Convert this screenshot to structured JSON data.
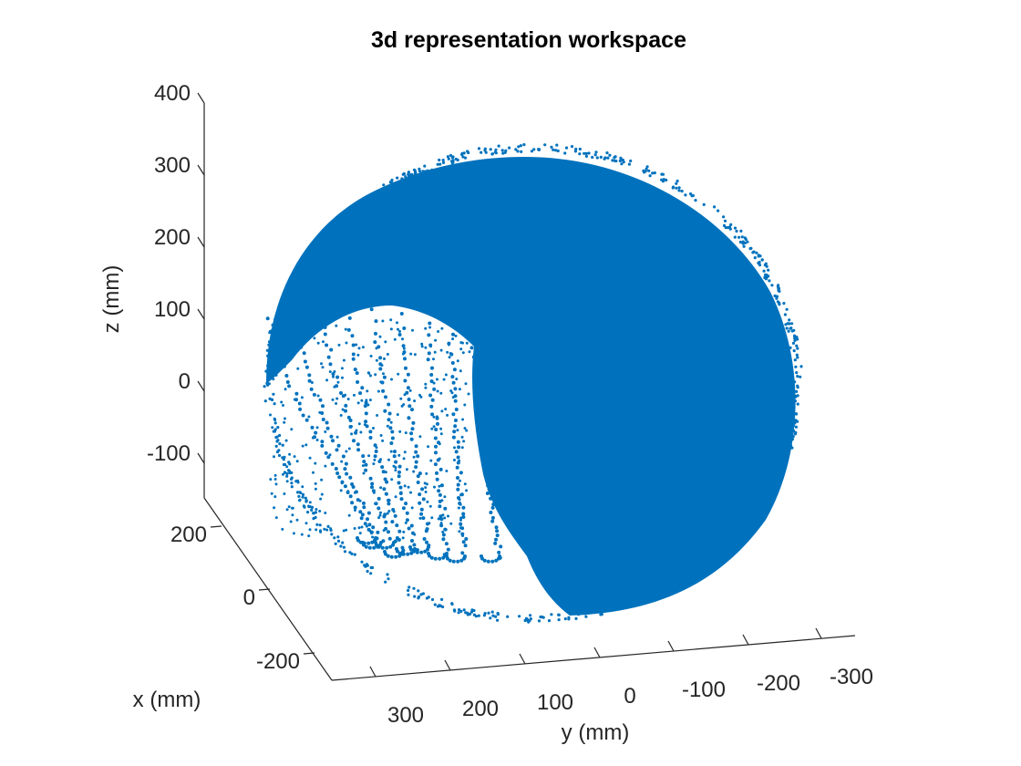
{
  "chart_data": {
    "type": "scatter",
    "title": "3d representation workspace",
    "xlabel": "x (mm)",
    "ylabel": "y (mm)",
    "zlabel": "z (mm)",
    "x_ticks": [
      "-200",
      "0",
      "200"
    ],
    "y_ticks": [
      "300",
      "200",
      "100",
      "0",
      "-100",
      "-200",
      "-300"
    ],
    "z_ticks": [
      "400",
      "300",
      "200",
      "100",
      "0",
      "-100"
    ],
    "xlim": [
      -300,
      300
    ],
    "ylim": [
      -350,
      350
    ],
    "zlim": [
      -150,
      400
    ],
    "grid": false,
    "marker_color": "#0072BD",
    "series": [
      {
        "description_points": "Reachable workspace sampled as a dense point cloud forming a near-spherical shell of radius ~300 mm centred near z = 50 mm, with a gap region on the +y / +x side showing discrete descending point curves."
      }
    ]
  }
}
